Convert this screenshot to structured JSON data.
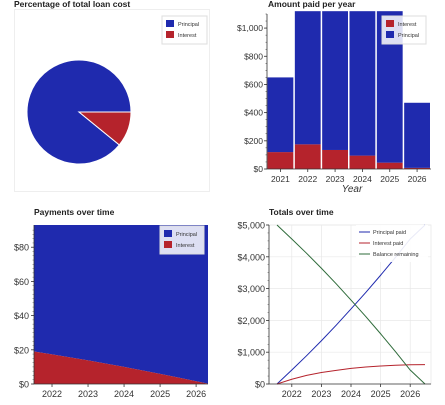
{
  "colors": {
    "principal": "#1f2aae",
    "interest": "#b5232c",
    "balance": "#2e6b3a",
    "grid": "#e8e8e8",
    "axis": "#333333"
  },
  "chart_data": [
    {
      "type": "pie",
      "title": "Percentage of total loan cost",
      "categories": [
        "Principal",
        "Interest"
      ],
      "values": [
        89.1,
        10.9
      ],
      "legend": [
        "Principal",
        "Interest"
      ],
      "legend_position": "top-right"
    },
    {
      "type": "bar",
      "title": "Amount paid per year",
      "xlabel": "Year",
      "ylabel": "",
      "categories": [
        "2021",
        "2022",
        "2023",
        "2024",
        "2025",
        "2026"
      ],
      "ylim": [
        0,
        1100
      ],
      "yticks": [
        "$0",
        "$200",
        "$400",
        "$600",
        "$800",
        "$1,000"
      ],
      "stacked": true,
      "series": [
        {
          "name": "Interest",
          "values": [
            120,
            175,
            135,
            95,
            45,
            8
          ]
        },
        {
          "name": "Principal",
          "values": [
            530,
            945,
            985,
            1025,
            1075,
            462
          ]
        }
      ],
      "legend_position": "top-right"
    },
    {
      "type": "area",
      "title": "Payments over time",
      "xlabel": "",
      "ylabel": "",
      "x": [
        2021.5,
        2022.0,
        2022.5,
        2023.0,
        2023.5,
        2024.0,
        2024.5,
        2025.0,
        2025.5,
        2026.0,
        2026.33
      ],
      "xticks": [
        "2022",
        "2023",
        "2024",
        "2025",
        "2026"
      ],
      "ylim": [
        0,
        93
      ],
      "yticks": [
        "$0",
        "$20",
        "$40",
        "$60",
        "$80"
      ],
      "stacked": true,
      "series": [
        {
          "name": "Interest",
          "values": [
            19.0,
            17.3,
            15.6,
            13.8,
            11.9,
            10.0,
            8.0,
            5.9,
            3.8,
            1.6,
            0.2
          ]
        },
        {
          "name": "Principal",
          "values": [
            74.0,
            75.7,
            77.4,
            79.2,
            81.1,
            83.0,
            85.0,
            87.1,
            89.2,
            91.4,
            92.8
          ]
        }
      ],
      "legend": [
        "Principal",
        "Interest"
      ],
      "legend_position": "top-right"
    },
    {
      "type": "line",
      "title": "Totals over time",
      "xlabel": "",
      "ylabel": "",
      "x": [
        2021.5,
        2022.0,
        2022.5,
        2023.0,
        2023.5,
        2024.0,
        2024.5,
        2025.0,
        2025.5,
        2026.0,
        2026.5
      ],
      "xticks": [
        "2022",
        "2023",
        "2024",
        "2025",
        "2026"
      ],
      "ylim": [
        0,
        5000
      ],
      "yticks": [
        "$0",
        "$1,000",
        "$2,000",
        "$3,000",
        "$4,000",
        "$5,000"
      ],
      "grid": true,
      "series": [
        {
          "name": "Principal paid",
          "values": [
            0,
            440,
            890,
            1360,
            1850,
            2360,
            2880,
            3420,
            3980,
            4560,
            5000
          ]
        },
        {
          "name": "Interest paid",
          "values": [
            0,
            150,
            270,
            360,
            430,
            490,
            535,
            565,
            590,
            605,
            610
          ]
        },
        {
          "name": "Balance remaining",
          "values": [
            5000,
            4560,
            4110,
            3640,
            3150,
            2640,
            2120,
            1580,
            1020,
            440,
            0
          ]
        }
      ],
      "legend": [
        "Principal paid",
        "Interest paid",
        "Balance remaining"
      ],
      "legend_position": "top-right"
    }
  ]
}
